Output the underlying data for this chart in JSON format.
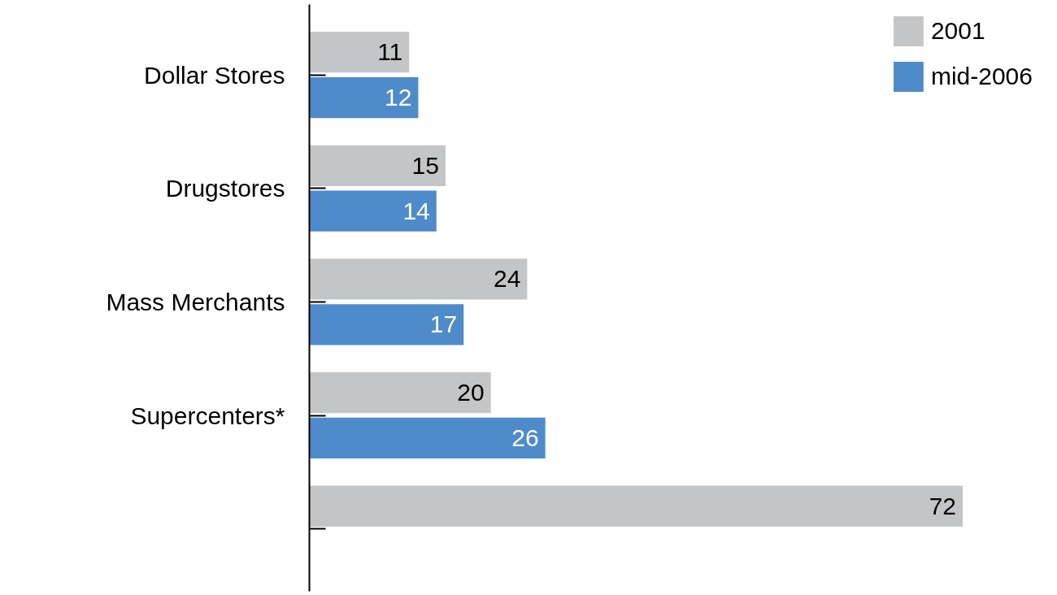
{
  "chart_data": {
    "type": "bar",
    "orientation": "horizontal",
    "categories": [
      "Dollar Stores",
      "Drugstores",
      "Mass Merchants",
      "Supercenters*",
      null
    ],
    "series": [
      {
        "name": "2001",
        "color": "#c4c5c7",
        "values": [
          11,
          15,
          24,
          20,
          72
        ]
      },
      {
        "name": "mid-2006",
        "color": "#4f8bcb",
        "values": [
          12,
          14,
          17,
          26,
          null
        ]
      }
    ],
    "data_labels": true,
    "legend": "top right",
    "grid": false
  }
}
